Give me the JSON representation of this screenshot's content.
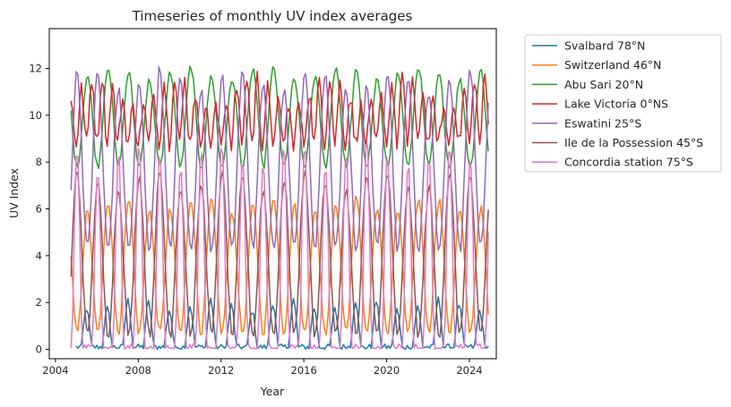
{
  "chart_data": {
    "type": "line",
    "title": "Timeseries of monthly UV index averages",
    "xlabel": "Year",
    "ylabel": "UV Index",
    "xlim": [
      2003.7,
      2025.3
    ],
    "ylim": [
      -0.4,
      13.7
    ],
    "x_ticks": [
      2004,
      2008,
      2012,
      2016,
      2020,
      2024
    ],
    "y_ticks": [
      0,
      2,
      4,
      6,
      8,
      10,
      12
    ],
    "x_start": 2004.75,
    "x_end": 2024.917,
    "sampling": "monthly",
    "legend_position": "outside-right",
    "grid": false,
    "series": [
      {
        "name": "Svalbard 78°N",
        "color": "#1f77b4",
        "baseline": 0.1,
        "amplitude": 1.9,
        "peak_month": 6,
        "shape": "polar",
        "noise": 0.25,
        "start": 2005.0
      },
      {
        "name": "Switzerland 46°N",
        "color": "#ff7f0e",
        "baseline": 0.7,
        "amplitude": 6.2,
        "peak_month": 6.5,
        "shape": "cos",
        "noise": 0.35,
        "start": 2004.75
      },
      {
        "name": "Abu Sari 20°N",
        "color": "#2ca02c",
        "baseline": 7.8,
        "amplitude": 11.8,
        "peak_month": 6.5,
        "shape": "cos",
        "noise": 0.3,
        "start": 2004.75
      },
      {
        "name": "Lake Victoria 0°NS",
        "color": "#d62728",
        "baseline": 8.8,
        "amplitude": 11.0,
        "peak_month": 3,
        "shape": "semi",
        "noise": 0.7,
        "start": 2004.75
      },
      {
        "name": "Eswatini 25°S",
        "color": "#9467bd",
        "baseline": 4.3,
        "amplitude": 11.5,
        "peak_month": 0.5,
        "shape": "cos",
        "noise": 0.5,
        "start": 2004.75
      },
      {
        "name": "Ile de la Possession 45°S",
        "color": "#8c564b",
        "baseline": 0.6,
        "amplitude": 7.2,
        "peak_month": 0.5,
        "shape": "cos",
        "noise": 0.4,
        "start": 2004.75
      },
      {
        "name": "Concordia station 75°S",
        "color": "#e377c2",
        "baseline": 0.0,
        "amplitude": 8.4,
        "peak_month": 0.5,
        "shape": "polar",
        "noise": 0.5,
        "start": 2004.75
      }
    ]
  }
}
